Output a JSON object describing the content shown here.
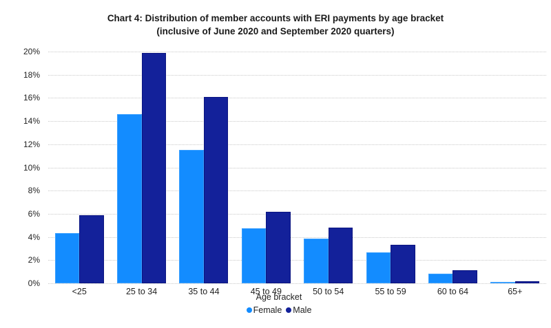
{
  "chart_data": {
    "type": "bar",
    "title": "Chart 4: Distribution of member accounts with ERI payments by age bracket",
    "subtitle": "(inclusive of June 2020 and September 2020 quarters)",
    "xlabel": "Age bracket",
    "ylabel": "",
    "categories": [
      "<25",
      "25 to 34",
      "35 to 44",
      "45 to 49",
      "50 to 54",
      "55 to 59",
      "60 to 64",
      "65+"
    ],
    "series": [
      {
        "name": "Female",
        "color": "#138cff",
        "values": [
          4.35,
          14.6,
          11.5,
          4.75,
          3.85,
          2.65,
          0.85,
          0.12
        ]
      },
      {
        "name": "Male",
        "color": "#13219a",
        "values": [
          5.85,
          19.9,
          16.1,
          6.2,
          4.8,
          3.3,
          1.15,
          0.15
        ]
      }
    ],
    "ylim": [
      0,
      20
    ],
    "yticks": [
      "0%",
      "2%",
      "4%",
      "6%",
      "8%",
      "10%",
      "12%",
      "14%",
      "16%",
      "18%",
      "20%"
    ],
    "grid": true,
    "legend_position": "bottom"
  }
}
